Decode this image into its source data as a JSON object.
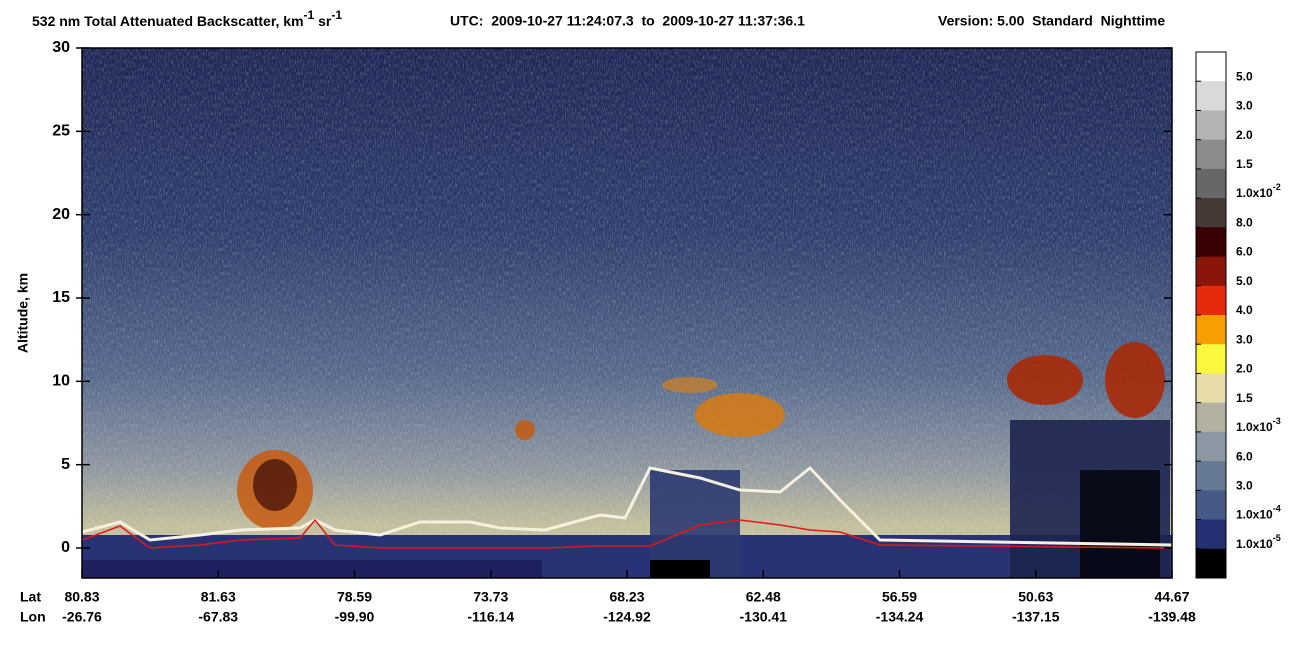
{
  "chart_data": {
    "type": "curtain",
    "title": {
      "quantity": "532 nm Total Attenuated Backscatter, km",
      "unit_exp1": "-1",
      "unit_mid": " sr",
      "unit_exp2": "-1",
      "time": "UTC:  2009-10-27 11:24:07.3  to  2009-10-27 11:37:36.1",
      "version": "Version: 5.00  Standard  Nighttime"
    },
    "y_label": "Altitude, km",
    "ylim": [
      -1.8,
      30
    ],
    "yticks": [
      0,
      5,
      10,
      15,
      20,
      25,
      30
    ],
    "x_row_labels": [
      "Lat",
      "Lon"
    ],
    "lat": [
      "80.83",
      "81.63",
      "78.59",
      "73.73",
      "68.23",
      "62.48",
      "56.59",
      "50.63",
      "44.67"
    ],
    "lon": [
      "-26.76",
      "-67.83",
      "-99.90",
      "-116.14",
      "-124.92",
      "-130.41",
      "-134.24",
      "-137.15",
      "-139.48"
    ],
    "colorbar": {
      "colors": [
        "#ffffff",
        "#d9d9d9",
        "#b3b3b3",
        "#8c8c8c",
        "#676767",
        "#473a36",
        "#3a0202",
        "#8a160a",
        "#e62a0c",
        "#f79e00",
        "#f9f83c",
        "#e8dbaa",
        "#b3b1a2",
        "#8b98a4",
        "#677a95",
        "#475987",
        "#262e74",
        "#000000"
      ],
      "labels": [
        "5.0",
        "3.0",
        "2.0",
        "1.5",
        {
          "text": "1.0x10",
          "sup": "-2"
        },
        "8.0",
        "6.0",
        "5.0",
        "4.0",
        "3.0",
        "2.0",
        "1.5",
        {
          "text": "1.0x10",
          "sup": "-3"
        },
        "6.0",
        "3.0",
        {
          "text": "1.0x10",
          "sup": "-4"
        },
        {
          "text": "1.0x10",
          "sup": "-5"
        }
      ]
    }
  }
}
